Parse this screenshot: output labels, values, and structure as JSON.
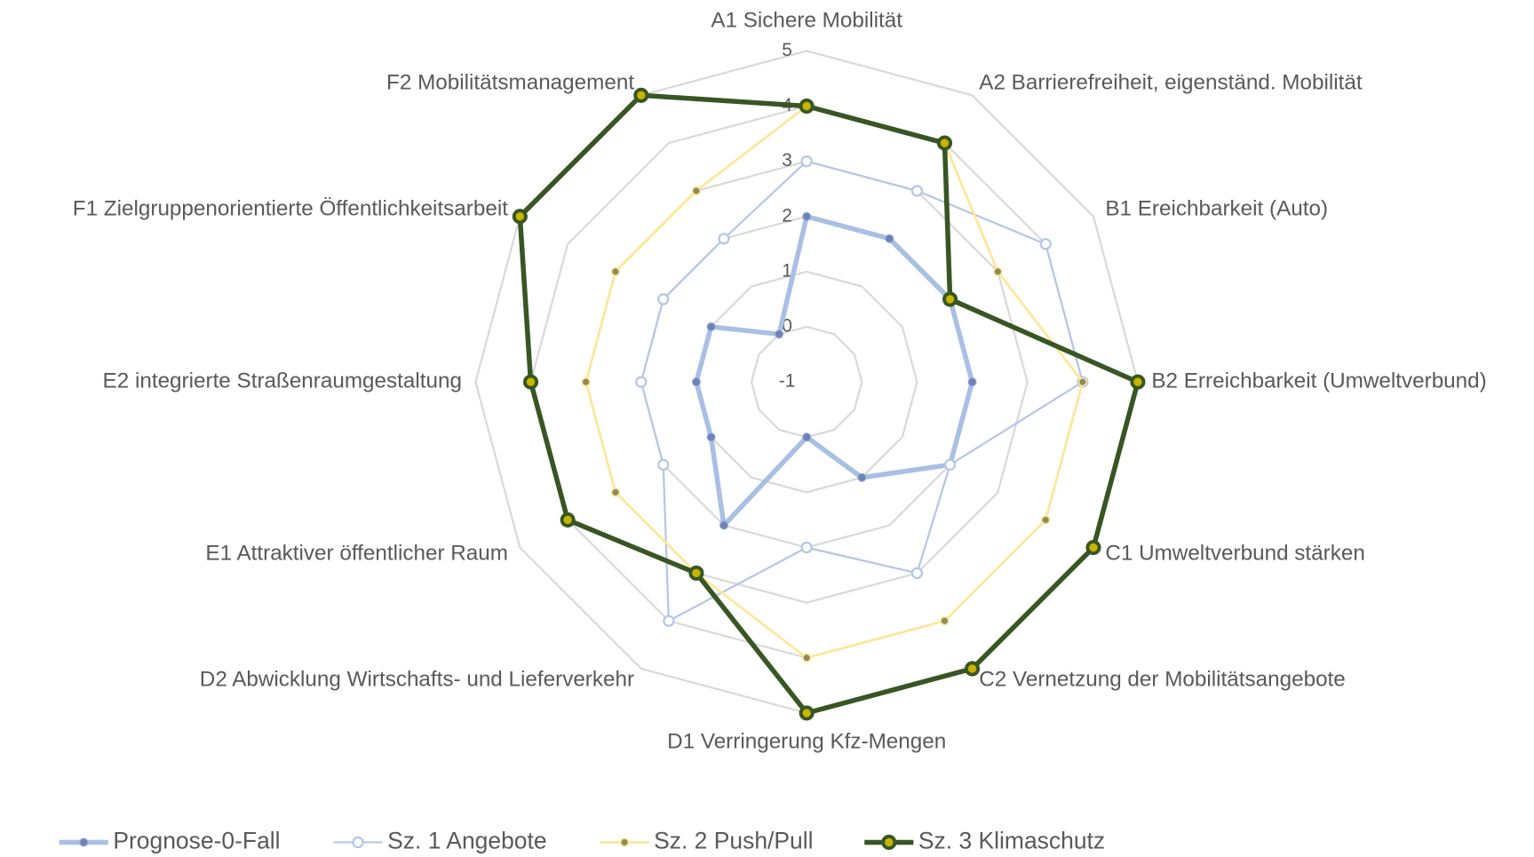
{
  "chart_data": {
    "type": "radar",
    "categories": [
      "A1 Sichere Mobilität",
      "A2 Barrierefreiheit, eigenständ. Mobilität",
      "B1 Ereichbarkeit (Auto)",
      "B2 Erreichbarkeit (Umweltverbund)",
      "C1 Umweltverbund stärken",
      "C2 Vernetzung der Mobilitätsangebote",
      "D1 Verringerung Kfz-Mengen",
      "D2 Abwicklung Wirtschafts- und Lieferverkehr",
      "E1 Attraktiver öffentlicher Raum",
      "E2 integrierte Straßenraumgestaltung",
      "F1 Zielgruppenorientierte Öffentlichkeitsarbeit",
      "F2 Mobilitätsmanagement"
    ],
    "series": [
      {
        "name": "Prognose-0-Fall",
        "color": "#a9bfe4",
        "values": [
          2,
          2,
          2,
          2,
          2,
          1,
          0,
          2,
          1,
          1,
          1,
          0
        ]
      },
      {
        "name": "Sz. 1 Angebote",
        "color": "#b4c6e7",
        "values": [
          3,
          3,
          4,
          4,
          2,
          3,
          2,
          4,
          2,
          2,
          2,
          2
        ]
      },
      {
        "name": "Sz. 2 Push/Pull",
        "color": "#ffe699",
        "values": [
          4,
          4,
          3,
          4,
          4,
          4,
          4,
          3,
          3,
          3,
          3,
          3
        ]
      },
      {
        "name": "Sz. 3 Klimaschutz",
        "color": "#375623",
        "values": [
          4,
          4,
          2,
          5,
          5,
          5,
          5,
          3,
          4,
          4,
          5,
          5
        ]
      }
    ],
    "ylim": [
      -1,
      5
    ],
    "yticks": [
      -1,
      0,
      1,
      2,
      3,
      4,
      5
    ],
    "grid": true,
    "legend": "bottom"
  }
}
